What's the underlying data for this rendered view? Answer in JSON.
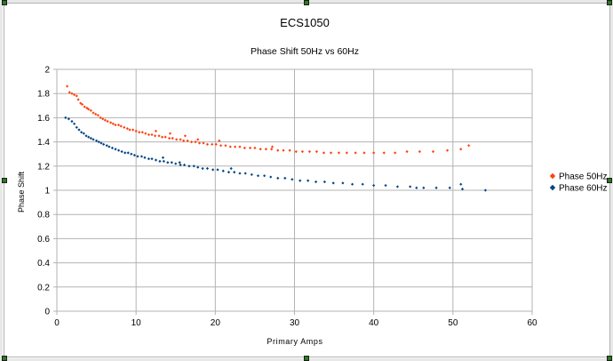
{
  "chart_data": {
    "type": "scatter",
    "title": "ECS1050",
    "subtitle": "Phase Shift 50Hz vs 60Hz",
    "xlabel": "Primary Amps",
    "ylabel": "Phase Shift",
    "xlim": [
      0,
      60
    ],
    "ylim": [
      0,
      2
    ],
    "x_ticks": [
      "0",
      "10",
      "20",
      "30",
      "40",
      "50",
      "60"
    ],
    "y_ticks": [
      "0",
      "0.2",
      "0.4",
      "0.6",
      "0.8",
      "1",
      "1.2",
      "1.4",
      "1.6",
      "1.8",
      "2"
    ],
    "grid": true,
    "legend_position": "right",
    "series": [
      {
        "name": "Phase 50Hz",
        "color": "#ff420e",
        "marker": "diamond",
        "points": [
          [
            1.3,
            1.86
          ],
          [
            1.6,
            1.81
          ],
          [
            1.9,
            1.8
          ],
          [
            2.2,
            1.79
          ],
          [
            2.5,
            1.78
          ],
          [
            2.7,
            1.75
          ],
          [
            3.0,
            1.72
          ],
          [
            3.2,
            1.71
          ],
          [
            3.5,
            1.69
          ],
          [
            3.8,
            1.68
          ],
          [
            4.0,
            1.67
          ],
          [
            4.3,
            1.66
          ],
          [
            4.6,
            1.64
          ],
          [
            4.9,
            1.63
          ],
          [
            5.2,
            1.62
          ],
          [
            5.5,
            1.6
          ],
          [
            5.8,
            1.59
          ],
          [
            6.1,
            1.58
          ],
          [
            6.4,
            1.57
          ],
          [
            6.8,
            1.56
          ],
          [
            7.1,
            1.55
          ],
          [
            7.4,
            1.54
          ],
          [
            7.8,
            1.54
          ],
          [
            8.1,
            1.53
          ],
          [
            8.5,
            1.52
          ],
          [
            8.9,
            1.51
          ],
          [
            9.2,
            1.5
          ],
          [
            9.6,
            1.5
          ],
          [
            10.0,
            1.49
          ],
          [
            10.4,
            1.48
          ],
          [
            10.8,
            1.48
          ],
          [
            11.2,
            1.47
          ],
          [
            11.6,
            1.46
          ],
          [
            12.0,
            1.46
          ],
          [
            12.4,
            1.45
          ],
          [
            12.9,
            1.45
          ],
          [
            13.3,
            1.44
          ],
          [
            13.7,
            1.44
          ],
          [
            14.2,
            1.43
          ],
          [
            14.6,
            1.43
          ],
          [
            15.1,
            1.42
          ],
          [
            15.6,
            1.42
          ],
          [
            16.0,
            1.41
          ],
          [
            16.5,
            1.41
          ],
          [
            17.0,
            1.4
          ],
          [
            17.5,
            1.4
          ],
          [
            18.0,
            1.39
          ],
          [
            18.5,
            1.39
          ],
          [
            19.0,
            1.38
          ],
          [
            19.6,
            1.38
          ],
          [
            20.1,
            1.38
          ],
          [
            20.7,
            1.37
          ],
          [
            21.3,
            1.37
          ],
          [
            21.9,
            1.36
          ],
          [
            22.5,
            1.36
          ],
          [
            23.1,
            1.36
          ],
          [
            23.7,
            1.35
          ],
          [
            24.4,
            1.35
          ],
          [
            25.0,
            1.35
          ],
          [
            25.7,
            1.34
          ],
          [
            26.4,
            1.34
          ],
          [
            27.1,
            1.34
          ],
          [
            27.9,
            1.33
          ],
          [
            28.6,
            1.33
          ],
          [
            29.4,
            1.33
          ],
          [
            30.2,
            1.32
          ],
          [
            31.0,
            1.32
          ],
          [
            31.9,
            1.32
          ],
          [
            32.8,
            1.32
          ],
          [
            33.7,
            1.31
          ],
          [
            34.6,
            1.31
          ],
          [
            35.6,
            1.31
          ],
          [
            36.6,
            1.31
          ],
          [
            37.7,
            1.31
          ],
          [
            38.8,
            1.31
          ],
          [
            40.0,
            1.31
          ],
          [
            41.3,
            1.31
          ],
          [
            42.7,
            1.31
          ],
          [
            44.2,
            1.32
          ],
          [
            45.8,
            1.32
          ],
          [
            47.5,
            1.32
          ],
          [
            49.3,
            1.33
          ],
          [
            51.0,
            1.34
          ],
          [
            52.0,
            1.37
          ],
          [
            16.2,
            1.45
          ],
          [
            17.8,
            1.42
          ],
          [
            14.3,
            1.47
          ],
          [
            12.5,
            1.49
          ],
          [
            20.5,
            1.41
          ],
          [
            27.2,
            1.36
          ]
        ]
      },
      {
        "name": "Phase 60Hz",
        "color": "#004586",
        "marker": "diamond",
        "points": [
          [
            1.1,
            1.6
          ],
          [
            1.5,
            1.59
          ],
          [
            1.9,
            1.57
          ],
          [
            2.2,
            1.55
          ],
          [
            2.5,
            1.52
          ],
          [
            2.8,
            1.5
          ],
          [
            3.1,
            1.48
          ],
          [
            3.4,
            1.47
          ],
          [
            3.7,
            1.45
          ],
          [
            4.0,
            1.44
          ],
          [
            4.3,
            1.43
          ],
          [
            4.6,
            1.42
          ],
          [
            5.0,
            1.41
          ],
          [
            5.3,
            1.4
          ],
          [
            5.6,
            1.39
          ],
          [
            5.9,
            1.38
          ],
          [
            6.3,
            1.37
          ],
          [
            6.6,
            1.36
          ],
          [
            7.0,
            1.35
          ],
          [
            7.4,
            1.34
          ],
          [
            7.8,
            1.33
          ],
          [
            8.2,
            1.32
          ],
          [
            8.6,
            1.31
          ],
          [
            9.0,
            1.31
          ],
          [
            9.4,
            1.3
          ],
          [
            9.8,
            1.29
          ],
          [
            10.2,
            1.28
          ],
          [
            10.7,
            1.28
          ],
          [
            11.1,
            1.27
          ],
          [
            11.6,
            1.26
          ],
          [
            12.0,
            1.26
          ],
          [
            12.5,
            1.25
          ],
          [
            13.0,
            1.24
          ],
          [
            13.5,
            1.24
          ],
          [
            14.0,
            1.23
          ],
          [
            14.5,
            1.23
          ],
          [
            15.0,
            1.22
          ],
          [
            15.6,
            1.21
          ],
          [
            16.1,
            1.21
          ],
          [
            16.7,
            1.2
          ],
          [
            17.3,
            1.2
          ],
          [
            17.8,
            1.19
          ],
          [
            18.4,
            1.18
          ],
          [
            19.0,
            1.18
          ],
          [
            19.7,
            1.17
          ],
          [
            20.3,
            1.17
          ],
          [
            21.0,
            1.16
          ],
          [
            21.7,
            1.15
          ],
          [
            22.4,
            1.15
          ],
          [
            23.1,
            1.14
          ],
          [
            23.8,
            1.14
          ],
          [
            24.6,
            1.13
          ],
          [
            25.4,
            1.12
          ],
          [
            26.2,
            1.12
          ],
          [
            27.0,
            1.11
          ],
          [
            27.9,
            1.1
          ],
          [
            28.8,
            1.1
          ],
          [
            29.7,
            1.09
          ],
          [
            30.7,
            1.08
          ],
          [
            31.7,
            1.08
          ],
          [
            32.7,
            1.07
          ],
          [
            33.8,
            1.07
          ],
          [
            34.9,
            1.06
          ],
          [
            36.1,
            1.06
          ],
          [
            37.3,
            1.05
          ],
          [
            38.6,
            1.05
          ],
          [
            40.0,
            1.04
          ],
          [
            41.5,
            1.04
          ],
          [
            43.0,
            1.03
          ],
          [
            44.6,
            1.03
          ],
          [
            46.3,
            1.02
          ],
          [
            47.9,
            1.02
          ],
          [
            49.6,
            1.02
          ],
          [
            51.2,
            1.01
          ],
          [
            54.1,
            1.0
          ],
          [
            51.0,
            1.05
          ],
          [
            45.4,
            1.02
          ],
          [
            15.5,
            1.23
          ],
          [
            13.4,
            1.27
          ],
          [
            22.0,
            1.18
          ]
        ]
      }
    ]
  }
}
